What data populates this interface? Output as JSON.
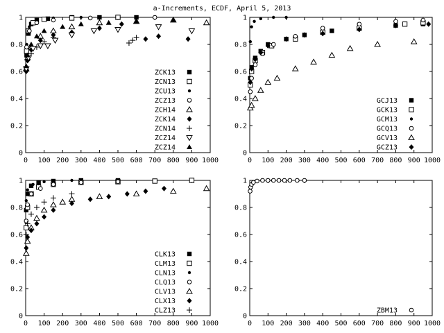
{
  "figure_title": "a-Increments, ECDF, April 5, 2013",
  "chart_data": [
    {
      "type": "scatter",
      "panel": "top-left",
      "xlim": [
        0,
        1000
      ],
      "ylim": [
        0,
        1
      ],
      "xticks": [
        0,
        100,
        200,
        300,
        400,
        500,
        600,
        700,
        800,
        900,
        1000
      ],
      "yticks": [
        0,
        0.2,
        0.4,
        0.6,
        0.8,
        1
      ],
      "grid": false,
      "legend_position": "bottom-right",
      "series": [
        {
          "name": "ZCK13",
          "marker": "filled-square",
          "points": [
            [
              5,
              0.72
            ],
            [
              15,
              0.88
            ],
            [
              30,
              0.95
            ],
            [
              60,
              0.98
            ],
            [
              120,
              0.99
            ],
            [
              250,
              1.0
            ],
            [
              400,
              1.0
            ],
            [
              600,
              1.0
            ]
          ]
        },
        {
          "name": "ZCN13",
          "marker": "open-square",
          "points": [
            [
              5,
              0.75
            ],
            [
              15,
              0.9
            ],
            [
              40,
              0.96
            ],
            [
              100,
              0.985
            ],
            [
              250,
              0.995
            ],
            [
              500,
              1.0
            ]
          ]
        },
        {
          "name": "ZCU13",
          "marker": "small-filled-circle",
          "points": [
            [
              5,
              0.8
            ],
            [
              20,
              0.93
            ],
            [
              60,
              0.98
            ],
            [
              150,
              0.995
            ],
            [
              300,
              1.0
            ]
          ]
        },
        {
          "name": "ZCZ13",
          "marker": "open-circle",
          "points": [
            [
              5,
              0.78
            ],
            [
              20,
              0.9
            ],
            [
              60,
              0.96
            ],
            [
              150,
              0.98
            ],
            [
              350,
              0.995
            ],
            [
              700,
              1.0
            ]
          ]
        },
        {
          "name": "ZCH14",
          "marker": "open-triangle",
          "points": [
            [
              3,
              0.62
            ],
            [
              10,
              0.7
            ],
            [
              30,
              0.78
            ],
            [
              80,
              0.86
            ],
            [
              150,
              0.9
            ],
            [
              250,
              0.93
            ],
            [
              400,
              0.96
            ],
            [
              600,
              0.97
            ],
            [
              800,
              0.98
            ],
            [
              980,
              0.96
            ]
          ]
        },
        {
          "name": "ZCK14",
          "marker": "filled-diamond",
          "points": [
            [
              3,
              0.6
            ],
            [
              10,
              0.68
            ],
            [
              30,
              0.76
            ],
            [
              80,
              0.83
            ],
            [
              150,
              0.87
            ],
            [
              250,
              0.89
            ],
            [
              400,
              0.92
            ],
            [
              520,
              0.95
            ],
            [
              650,
              0.84
            ],
            [
              720,
              0.86
            ],
            [
              880,
              0.84
            ]
          ]
        },
        {
          "name": "ZCN14",
          "marker": "plus",
          "points": [
            [
              3,
              0.61
            ],
            [
              10,
              0.69
            ],
            [
              30,
              0.73
            ],
            [
              60,
              0.78
            ],
            [
              100,
              0.82
            ],
            [
              150,
              0.85
            ],
            [
              560,
              0.81
            ],
            [
              580,
              0.83
            ],
            [
              600,
              0.85
            ]
          ]
        },
        {
          "name": "ZCZ14",
          "marker": "open-inverted-triangle",
          "points": [
            [
              3,
              0.62
            ],
            [
              15,
              0.7
            ],
            [
              40,
              0.77
            ],
            [
              80,
              0.79
            ],
            [
              120,
              0.79
            ],
            [
              160,
              0.83
            ],
            [
              250,
              0.87
            ],
            [
              370,
              0.9
            ],
            [
              500,
              0.91
            ],
            [
              720,
              0.93
            ],
            [
              900,
              0.9
            ]
          ]
        },
        {
          "name": "ZCZ14",
          "marker": "filled-triangle",
          "points": [
            [
              3,
              0.64
            ],
            [
              10,
              0.72
            ],
            [
              30,
              0.8
            ],
            [
              60,
              0.86
            ],
            [
              100,
              0.9
            ],
            [
              200,
              0.93
            ],
            [
              300,
              0.95
            ],
            [
              450,
              0.96
            ],
            [
              600,
              0.97
            ],
            [
              800,
              0.98
            ]
          ]
        }
      ]
    },
    {
      "type": "scatter",
      "panel": "top-right",
      "xlim": [
        0,
        1000
      ],
      "ylim": [
        0,
        1
      ],
      "xticks": [
        0,
        100,
        200,
        300,
        400,
        500,
        600,
        700,
        800,
        900,
        1000
      ],
      "yticks": [
        0,
        0.2,
        0.4,
        0.6,
        0.8,
        1
      ],
      "grid": false,
      "legend_position": "bottom-right",
      "series": [
        {
          "name": "GCJ13",
          "marker": "filled-square",
          "points": [
            [
              3,
              0.55
            ],
            [
              10,
              0.63
            ],
            [
              30,
              0.7
            ],
            [
              60,
              0.75
            ],
            [
              100,
              0.8
            ],
            [
              200,
              0.84
            ],
            [
              300,
              0.87
            ],
            [
              450,
              0.9
            ],
            [
              600,
              0.92
            ],
            [
              800,
              0.94
            ],
            [
              950,
              0.95
            ]
          ]
        },
        {
          "name": "GCK13",
          "marker": "open-square",
          "points": [
            [
              3,
              0.5
            ],
            [
              10,
              0.6
            ],
            [
              30,
              0.68
            ],
            [
              70,
              0.74
            ],
            [
              120,
              0.79
            ],
            [
              250,
              0.84
            ],
            [
              400,
              0.89
            ],
            [
              600,
              0.92
            ],
            [
              850,
              0.95
            ],
            [
              950,
              0.96
            ]
          ]
        },
        {
          "name": "GCM13",
          "marker": "small-filled-circle",
          "points": [
            [
              3,
              0.82
            ],
            [
              10,
              0.93
            ],
            [
              25,
              0.97
            ],
            [
              60,
              0.99
            ],
            [
              130,
              1.0
            ],
            [
              200,
              1.0
            ]
          ]
        },
        {
          "name": "GCQ13",
          "marker": "open-circle",
          "points": [
            [
              3,
              0.45
            ],
            [
              10,
              0.55
            ],
            [
              30,
              0.65
            ],
            [
              70,
              0.73
            ],
            [
              130,
              0.8
            ],
            [
              250,
              0.86
            ],
            [
              400,
              0.92
            ],
            [
              600,
              0.95
            ],
            [
              800,
              0.97
            ],
            [
              950,
              0.98
            ]
          ]
        },
        {
          "name": "GCV13",
          "marker": "open-triangle",
          "points": [
            [
              3,
              0.33
            ],
            [
              10,
              0.35
            ],
            [
              30,
              0.4
            ],
            [
              60,
              0.46
            ],
            [
              100,
              0.52
            ],
            [
              150,
              0.55
            ],
            [
              250,
              0.62
            ],
            [
              350,
              0.67
            ],
            [
              450,
              0.72
            ],
            [
              550,
              0.77
            ],
            [
              700,
              0.8
            ],
            [
              900,
              0.82
            ]
          ]
        },
        {
          "name": "GCZ13",
          "marker": "filled-diamond",
          "points": [
            [
              3,
              0.52
            ],
            [
              10,
              0.62
            ],
            [
              30,
              0.69
            ],
            [
              60,
              0.74
            ],
            [
              100,
              0.79
            ],
            [
              200,
              0.84
            ],
            [
              300,
              0.87
            ],
            [
              400,
              0.88
            ],
            [
              600,
              0.91
            ],
            [
              800,
              0.94
            ],
            [
              980,
              0.95
            ]
          ]
        }
      ]
    },
    {
      "type": "scatter",
      "panel": "bottom-left",
      "xlim": [
        0,
        1000
      ],
      "ylim": [
        0,
        1
      ],
      "xticks": [
        0,
        100,
        200,
        300,
        400,
        500,
        600,
        700,
        800,
        900,
        1000
      ],
      "yticks": [
        0,
        0.2,
        0.4,
        0.6,
        0.8,
        1
      ],
      "grid": false,
      "legend_position": "bottom-right",
      "series": [
        {
          "name": "CLK13",
          "marker": "filled-square",
          "points": [
            [
              3,
              0.78
            ],
            [
              10,
              0.9
            ],
            [
              30,
              0.96
            ],
            [
              70,
              0.985
            ],
            [
              150,
              0.995
            ],
            [
              300,
              1.0
            ],
            [
              500,
              1.0
            ]
          ]
        },
        {
          "name": "CLM13",
          "marker": "open-square",
          "points": [
            [
              3,
              0.65
            ],
            [
              10,
              0.8
            ],
            [
              30,
              0.9
            ],
            [
              70,
              0.95
            ],
            [
              150,
              0.97
            ],
            [
              300,
              0.985
            ],
            [
              500,
              0.99
            ],
            [
              700,
              0.995
            ],
            [
              900,
              1.0
            ]
          ]
        },
        {
          "name": "CLN13",
          "marker": "small-filled-circle",
          "points": [
            [
              3,
              0.85
            ],
            [
              10,
              0.93
            ],
            [
              40,
              0.97
            ],
            [
              100,
              0.99
            ],
            [
              250,
              1.0
            ]
          ]
        },
        {
          "name": "CLQ13",
          "marker": "open-circle",
          "points": [
            [
              3,
              0.7
            ],
            [
              10,
              0.82
            ],
            [
              30,
              0.9
            ],
            [
              80,
              0.94
            ],
            [
              150,
              0.97
            ],
            [
              300,
              0.985
            ],
            [
              500,
              0.99
            ]
          ]
        },
        {
          "name": "CLV13",
          "marker": "open-triangle",
          "points": [
            [
              3,
              0.46
            ],
            [
              10,
              0.55
            ],
            [
              30,
              0.65
            ],
            [
              60,
              0.72
            ],
            [
              100,
              0.78
            ],
            [
              150,
              0.82
            ],
            [
              200,
              0.84
            ],
            [
              250,
              0.86
            ],
            [
              400,
              0.88
            ],
            [
              600,
              0.9
            ],
            [
              800,
              0.92
            ],
            [
              980,
              0.94
            ]
          ]
        },
        {
          "name": "CLX13",
          "marker": "filled-diamond",
          "points": [
            [
              3,
              0.5
            ],
            [
              10,
              0.58
            ],
            [
              30,
              0.63
            ],
            [
              60,
              0.68
            ],
            [
              100,
              0.73
            ],
            [
              150,
              0.78
            ],
            [
              250,
              0.83
            ],
            [
              350,
              0.86
            ],
            [
              450,
              0.88
            ],
            [
              550,
              0.9
            ],
            [
              650,
              0.92
            ],
            [
              750,
              0.94
            ]
          ]
        },
        {
          "name": "CLZ13",
          "marker": "plus",
          "points": [
            [
              3,
              0.6
            ],
            [
              10,
              0.68
            ],
            [
              30,
              0.75
            ],
            [
              60,
              0.8
            ],
            [
              100,
              0.84
            ],
            [
              150,
              0.87
            ],
            [
              250,
              0.9
            ]
          ]
        }
      ]
    },
    {
      "type": "scatter",
      "panel": "bottom-right",
      "xlim": [
        0,
        1000
      ],
      "ylim": [
        0,
        1
      ],
      "xticks": [
        0,
        100,
        200,
        300,
        400,
        500,
        600,
        700,
        800,
        900,
        1000
      ],
      "yticks": [
        0,
        0.2,
        0.4,
        0.6,
        0.8,
        1
      ],
      "grid": false,
      "legend_position": "bottom-right",
      "series": [
        {
          "name": "ZBM13",
          "marker": "open-circle",
          "points": [
            [
              2,
              0.92
            ],
            [
              5,
              0.95
            ],
            [
              10,
              0.97
            ],
            [
              20,
              0.985
            ],
            [
              40,
              0.995
            ],
            [
              70,
              1.0
            ],
            [
              100,
              1.0
            ],
            [
              130,
              1.0
            ],
            [
              160,
              1.0
            ],
            [
              190,
              1.0
            ],
            [
              220,
              1.0
            ],
            [
              260,
              1.0
            ],
            [
              300,
              1.0
            ]
          ]
        }
      ]
    }
  ]
}
